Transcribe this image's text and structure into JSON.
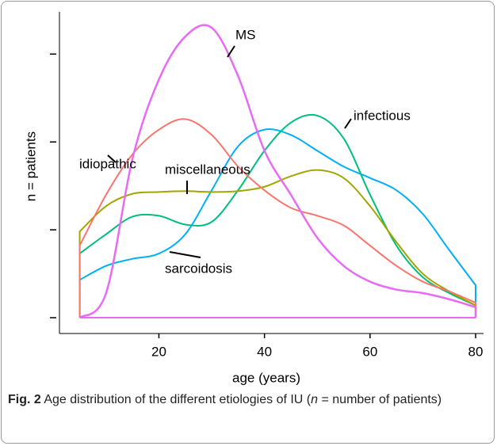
{
  "chart_data": {
    "type": "line",
    "x_label": "age (years)",
    "y_label": "n = patients",
    "x": [
      5,
      10,
      15,
      20,
      25,
      30,
      35,
      40,
      45,
      50,
      55,
      60,
      65,
      70,
      75,
      80
    ],
    "series": [
      {
        "name": "MS",
        "color": "#e76bf3",
        "values": [
          0,
          0.28,
          1.81,
          2.71,
          3.2,
          3.3,
          2.75,
          1.9,
          1.4,
          0.91,
          0.59,
          0.41,
          0.32,
          0.28,
          0.21,
          0.12
        ]
      },
      {
        "name": "idiopathic",
        "color": "#f8766d",
        "values": [
          0.82,
          1.4,
          1.86,
          2.14,
          2.26,
          2.08,
          1.72,
          1.45,
          1.25,
          1.16,
          1.05,
          0.82,
          0.59,
          0.41,
          0.3,
          0.17
        ]
      },
      {
        "name": "miscellaneous",
        "color": "#a3a500",
        "values": [
          0.98,
          1.27,
          1.41,
          1.43,
          1.44,
          1.43,
          1.44,
          1.49,
          1.61,
          1.68,
          1.59,
          1.27,
          0.86,
          0.5,
          0.3,
          0.14
        ]
      },
      {
        "name": "infectious",
        "color": "#00bf7d",
        "values": [
          0.73,
          0.95,
          1.15,
          1.16,
          1.06,
          1.09,
          1.45,
          1.9,
          2.22,
          2.3,
          2.04,
          1.4,
          0.82,
          0.46,
          0.28,
          0.14
        ]
      },
      {
        "name": "sarcoidosis",
        "color": "#00b0f6",
        "values": [
          0.43,
          0.59,
          0.67,
          0.73,
          0.95,
          1.45,
          1.95,
          2.14,
          2.08,
          1.9,
          1.72,
          1.59,
          1.45,
          1.18,
          0.77,
          0.37
        ]
      }
    ],
    "xlim": [
      -10.1,
      83
    ],
    "xticks": [
      20,
      40,
      60,
      80
    ],
    "ylim": [
      -0.18,
      3.48
    ],
    "yticks": [
      0,
      1,
      2,
      3
    ]
  },
  "caption": {
    "label": "Fig. 2",
    "text_before": "Age distribution of the different etiologies of IU (",
    "italic": "n",
    "text_after": " = number of patients)"
  }
}
